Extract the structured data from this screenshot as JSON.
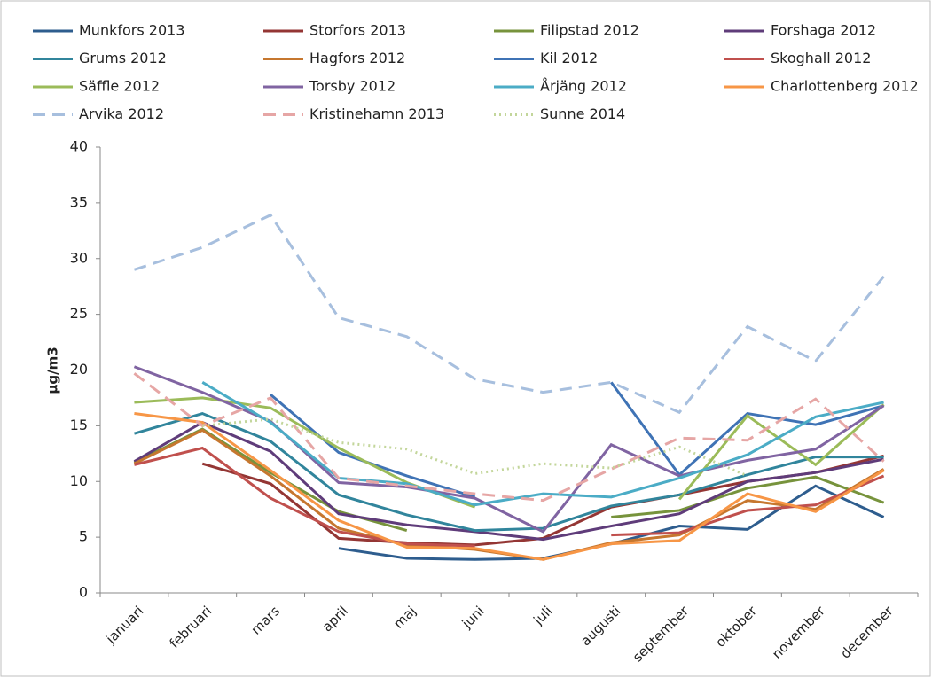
{
  "chart_data": {
    "type": "line",
    "y_label": "µg/m3",
    "categories": [
      "januari",
      "februari",
      "mars",
      "april",
      "maj",
      "juni",
      "juli",
      "augusti",
      "september",
      "oktober",
      "november",
      "december"
    ],
    "ylim": [
      0,
      40
    ],
    "yticks": [
      0,
      5,
      10,
      15,
      20,
      25,
      30,
      35,
      40
    ],
    "grid": false,
    "series": [
      {
        "name": "Munkfors 2013",
        "color": "#2e5d8e",
        "style": "solid",
        "values": [
          null,
          null,
          null,
          4.0,
          3.1,
          3.0,
          3.1,
          4.4,
          6.0,
          5.7,
          9.6,
          6.8
        ]
      },
      {
        "name": "Storfors 2013",
        "color": "#943634",
        "style": "solid",
        "values": [
          null,
          11.6,
          9.8,
          4.9,
          4.5,
          4.3,
          4.9,
          7.7,
          8.8,
          10.0,
          10.8,
          12.3
        ]
      },
      {
        "name": "Filipstad 2012",
        "color": "#77933c",
        "style": "solid",
        "values": [
          11.7,
          14.7,
          10.8,
          7.3,
          5.6,
          null,
          null,
          6.8,
          7.4,
          9.4,
          10.4,
          8.1
        ]
      },
      {
        "name": "Forshaga 2012",
        "color": "#5f3c7a",
        "style": "solid",
        "values": [
          11.8,
          15.3,
          12.7,
          7.1,
          6.1,
          5.5,
          4.8,
          6.0,
          7.1,
          10.0,
          10.8,
          12.0
        ]
      },
      {
        "name": "Grums 2012",
        "color": "#31859c",
        "style": "solid",
        "values": [
          14.3,
          16.1,
          13.6,
          8.8,
          7.0,
          5.6,
          5.8,
          7.8,
          8.8,
          10.6,
          12.2,
          12.2
        ]
      },
      {
        "name": "Hagfors 2012",
        "color": "#c6772f",
        "style": "solid",
        "values": [
          11.6,
          14.6,
          10.5,
          5.8,
          4.3,
          3.9,
          3.0,
          4.5,
          5.2,
          8.3,
          7.5,
          11.1
        ]
      },
      {
        "name": "Kil 2012",
        "color": "#3f73b5",
        "style": "solid",
        "values": [
          null,
          null,
          17.8,
          12.6,
          10.5,
          8.6,
          null,
          18.9,
          10.6,
          16.1,
          15.1,
          16.8
        ]
      },
      {
        "name": "Skoghall 2012",
        "color": "#c0504d",
        "style": "solid",
        "values": [
          11.5,
          13.0,
          8.5,
          5.5,
          4.4,
          4.2,
          null,
          5.2,
          5.4,
          7.4,
          7.9,
          10.5
        ]
      },
      {
        "name": "Säffle 2012",
        "color": "#9bbb59",
        "style": "solid",
        "values": [
          17.1,
          17.5,
          16.6,
          13.0,
          9.9,
          7.7,
          null,
          null,
          8.4,
          15.9,
          11.5,
          16.9
        ]
      },
      {
        "name": "Torsby 2012",
        "color": "#8064a2",
        "style": "solid",
        "values": [
          20.3,
          18.0,
          15.4,
          9.9,
          9.5,
          8.5,
          5.5,
          13.3,
          10.5,
          11.9,
          12.9,
          16.8
        ]
      },
      {
        "name": "Årjäng 2012",
        "color": "#4bacc6",
        "style": "solid",
        "values": [
          null,
          18.9,
          15.3,
          10.3,
          9.8,
          7.9,
          8.9,
          8.6,
          10.3,
          12.4,
          15.8,
          17.1
        ]
      },
      {
        "name": "Charlottenberg 2012",
        "color": "#f79646",
        "style": "solid",
        "values": [
          16.1,
          15.3,
          11.0,
          6.5,
          4.1,
          4.0,
          3.0,
          4.4,
          4.7,
          8.9,
          7.3,
          11.0
        ]
      },
      {
        "name": "Arvika 2012",
        "color": "#a7bfde",
        "style": "dashed",
        "values": [
          29.0,
          31.0,
          33.9,
          24.7,
          23.0,
          19.2,
          18.0,
          18.9,
          16.2,
          23.9,
          20.8,
          28.4
        ]
      },
      {
        "name": "Kristinehamn 2013",
        "color": "#e6a6a5",
        "style": "dashed",
        "values": [
          19.7,
          15.0,
          17.5,
          10.3,
          9.6,
          8.9,
          8.3,
          11.1,
          13.9,
          13.7,
          17.4,
          11.8
        ]
      },
      {
        "name": "Sunne 2014",
        "color": "#c3d69b",
        "style": "dotted",
        "values": [
          null,
          15.0,
          15.6,
          13.5,
          12.9,
          10.7,
          11.6,
          11.2,
          13.1,
          10.5,
          null,
          null
        ]
      }
    ]
  }
}
